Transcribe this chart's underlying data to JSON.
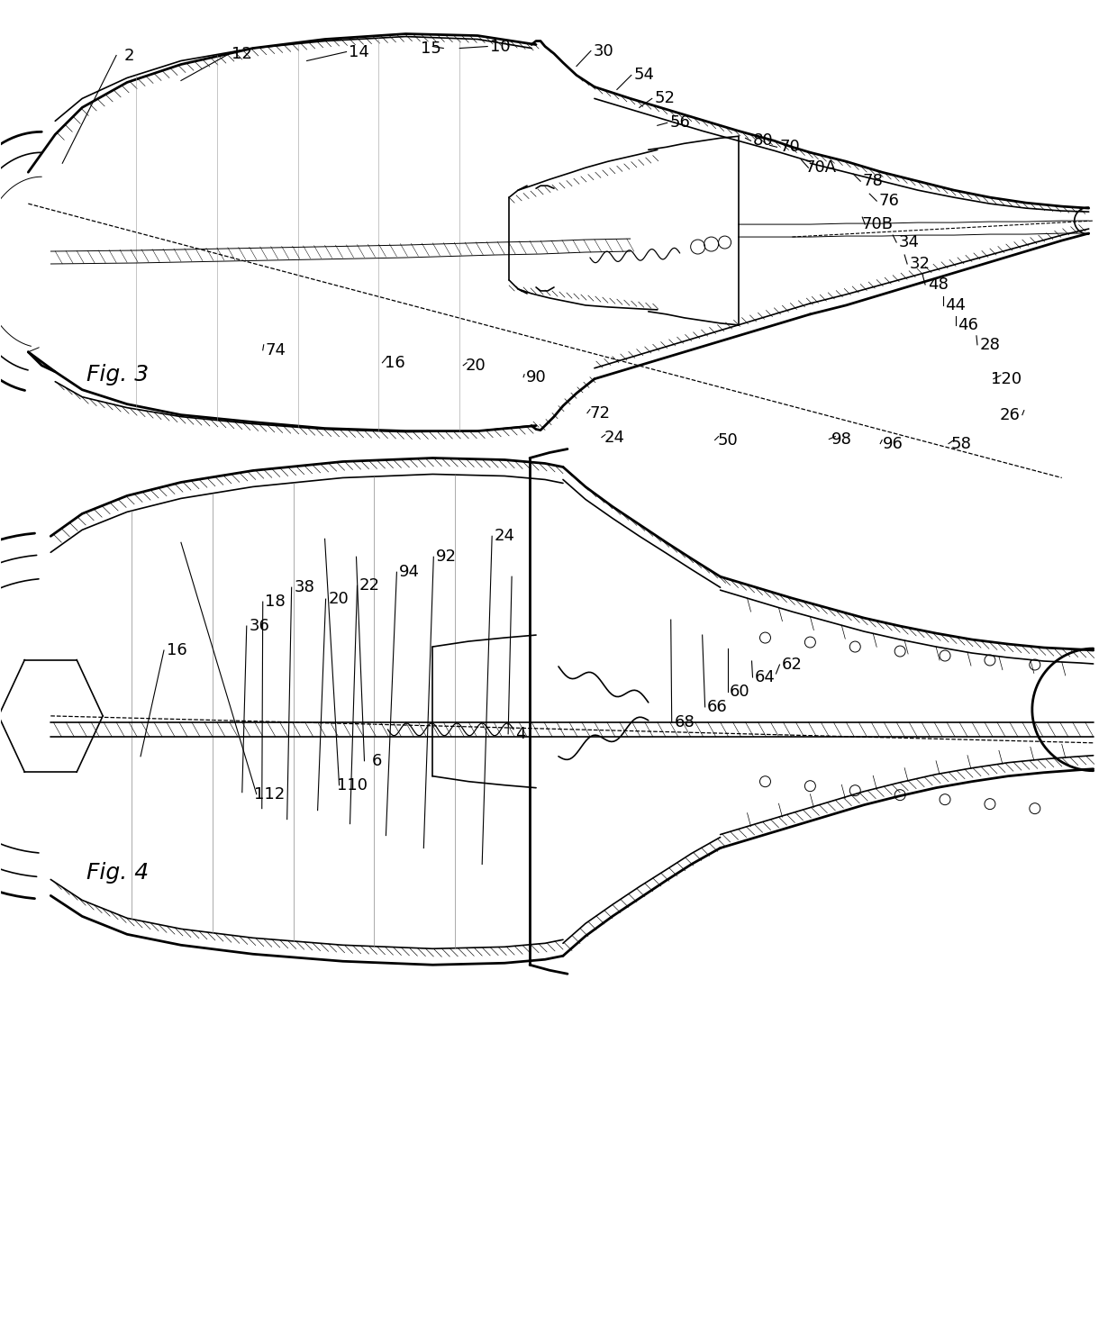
{
  "background": "#ffffff",
  "lw_heavy": 2.0,
  "lw_med": 1.2,
  "lw_thin": 0.7,
  "lw_hatch": 0.45,
  "fs_ref": 13,
  "fs_fig": 18,
  "fig3_label": "Fig. 3",
  "fig4_label": "Fig. 4",
  "fig3_labels": [
    [
      "2",
      142,
      60
    ],
    [
      "12",
      268,
      58
    ],
    [
      "14",
      398,
      56
    ],
    [
      "15",
      478,
      52
    ],
    [
      "10",
      555,
      50
    ],
    [
      "30",
      670,
      55
    ],
    [
      "54",
      715,
      82
    ],
    [
      "52",
      738,
      108
    ],
    [
      "56",
      755,
      135
    ],
    [
      "80",
      848,
      155
    ],
    [
      "70",
      877,
      162
    ],
    [
      "70A",
      912,
      185
    ],
    [
      "78",
      970,
      200
    ],
    [
      "76",
      988,
      222
    ],
    [
      "70B",
      975,
      248
    ],
    [
      "34",
      1010,
      268
    ],
    [
      "32",
      1022,
      292
    ],
    [
      "48",
      1042,
      315
    ],
    [
      "44",
      1062,
      338
    ],
    [
      "46",
      1076,
      360
    ],
    [
      "28",
      1100,
      382
    ],
    [
      "120",
      1118,
      420
    ],
    [
      "26",
      1122,
      460
    ],
    [
      "58",
      1068,
      492
    ],
    [
      "96",
      992,
      492
    ],
    [
      "98",
      935,
      487
    ],
    [
      "50",
      808,
      488
    ],
    [
      "24",
      682,
      485
    ],
    [
      "72",
      666,
      458
    ],
    [
      "90",
      595,
      418
    ],
    [
      "20",
      528,
      405
    ],
    [
      "16",
      438,
      402
    ],
    [
      "74",
      305,
      388
    ]
  ],
  "fig4_labels": [
    [
      "112",
      298,
      882
    ],
    [
      "110",
      390,
      872
    ],
    [
      "6",
      418,
      845
    ],
    [
      "4",
      578,
      815
    ],
    [
      "68",
      760,
      802
    ],
    [
      "66",
      797,
      785
    ],
    [
      "60",
      822,
      768
    ],
    [
      "64",
      850,
      752
    ],
    [
      "62",
      880,
      738
    ],
    [
      "16",
      195,
      722
    ],
    [
      "36",
      287,
      695
    ],
    [
      "18",
      305,
      668
    ],
    [
      "38",
      337,
      652
    ],
    [
      "20",
      375,
      665
    ],
    [
      "22",
      410,
      650
    ],
    [
      "94",
      454,
      635
    ],
    [
      "92",
      495,
      618
    ],
    [
      "24",
      560,
      595
    ]
  ]
}
